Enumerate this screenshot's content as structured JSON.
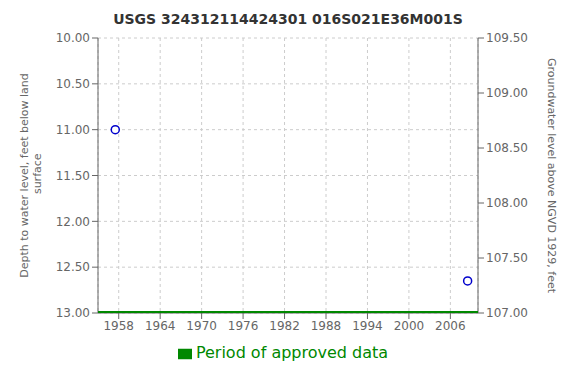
{
  "chart_data": {
    "type": "scatter",
    "title": "USGS 324312114424301 016S021E36M001S",
    "ylabel": "Depth to water level, feet below land\n surface",
    "y2label": "Groundwater level above NGVD 1929, feet",
    "xlim": [
      1955,
      2010
    ],
    "xticks": [
      1958,
      1964,
      1970,
      1976,
      1982,
      1988,
      1994,
      2000,
      2006
    ],
    "ylim": [
      13.0,
      10.0
    ],
    "yticks": [
      {
        "value": 10.0,
        "label": "10.00"
      },
      {
        "value": 10.5,
        "label": "10.50"
      },
      {
        "value": 11.0,
        "label": "11.00"
      },
      {
        "value": 11.5,
        "label": "11.50"
      },
      {
        "value": 12.0,
        "label": "12.00"
      },
      {
        "value": 12.5,
        "label": "12.50"
      },
      {
        "value": 13.0,
        "label": "13.00"
      }
    ],
    "y2lim": [
      107.0,
      109.5
    ],
    "y2ticks": [
      {
        "value": 109.5,
        "label": "109.50"
      },
      {
        "value": 109.0,
        "label": "109.00"
      },
      {
        "value": 108.5,
        "label": "108.50"
      },
      {
        "value": 108.0,
        "label": "108.00"
      },
      {
        "value": 107.5,
        "label": "107.50"
      },
      {
        "value": 107.0,
        "label": "107.00"
      }
    ],
    "grid": true,
    "legend": "bottom",
    "series": [
      {
        "type": "scatter",
        "color": "#0000cc",
        "marker": "circle",
        "x": [
          1957.5,
          2008.5
        ],
        "values": [
          11.0,
          12.65
        ]
      },
      {
        "name": "Period of approved data",
        "type": "line",
        "color": "#008800",
        "x": [
          1955,
          2010
        ],
        "values": [
          13.0,
          13.0
        ]
      }
    ]
  }
}
